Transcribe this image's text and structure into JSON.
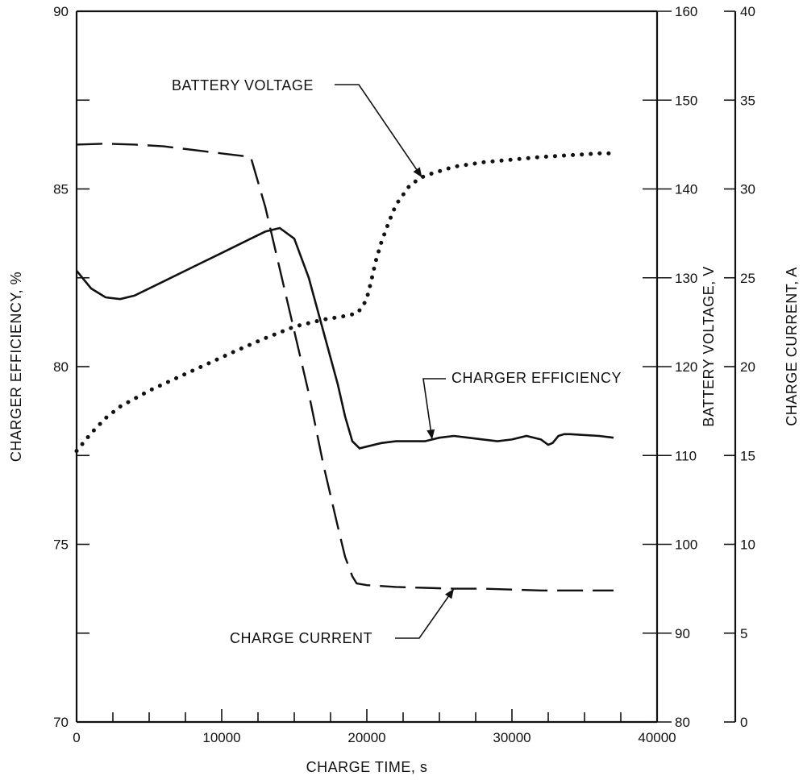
{
  "chart_data": {
    "type": "line",
    "title": "",
    "xlabel": "CHARGE TIME, s",
    "xlim": [
      0,
      40000
    ],
    "xticks": [
      "0",
      "10000",
      "20000",
      "30000",
      "40000"
    ],
    "axes": [
      {
        "id": "efficiency",
        "side": "left",
        "label": "CHARGER EFFICIENCY, %",
        "lim": [
          70,
          90
        ],
        "ticks": [
          "70",
          "75",
          "80",
          "85",
          "90"
        ]
      },
      {
        "id": "voltage",
        "side": "right",
        "label": "BATTERY VOLTAGE, V",
        "lim": [
          80,
          160
        ],
        "ticks": [
          "80",
          "90",
          "100",
          "110",
          "120",
          "130",
          "140",
          "150",
          "160"
        ]
      },
      {
        "id": "current",
        "side": "far-right",
        "label": "CHARGE CURRENT, A",
        "lim": [
          0,
          40
        ],
        "ticks": [
          "0",
          "5",
          "10",
          "15",
          "20",
          "25",
          "30",
          "35",
          "40"
        ]
      }
    ],
    "grid": false,
    "series": [
      {
        "name": "CHARGER EFFICIENCY",
        "axis": "efficiency",
        "style": "solid",
        "x": [
          0,
          1000,
          2000,
          3000,
          4000,
          6000,
          8000,
          10000,
          12000,
          13000,
          14000,
          15000,
          16000,
          17000,
          18000,
          18500,
          19000,
          19500,
          20000,
          21000,
          22000,
          24000,
          25000,
          26000,
          27000,
          28000,
          29000,
          30000,
          31000,
          32000,
          32500,
          32800,
          33200,
          33600,
          34000,
          36000,
          37000
        ],
        "y": [
          82.7,
          82.2,
          81.95,
          81.9,
          82.0,
          82.4,
          82.8,
          83.2,
          83.6,
          83.8,
          83.9,
          83.6,
          82.5,
          81.0,
          79.5,
          78.6,
          77.9,
          77.7,
          77.75,
          77.85,
          77.9,
          77.9,
          78.0,
          78.05,
          78.0,
          77.95,
          77.9,
          77.95,
          78.05,
          77.95,
          77.8,
          77.85,
          78.05,
          78.1,
          78.1,
          78.05,
          78.0
        ]
      },
      {
        "name": "BATTERY VOLTAGE",
        "axis": "voltage",
        "style": "dotted",
        "x": [
          0,
          1000,
          2000,
          3000,
          5000,
          7000,
          9000,
          11000,
          13000,
          15000,
          17000,
          18500,
          19300,
          19700,
          20000,
          20300,
          20600,
          21000,
          21500,
          22000,
          23000,
          24000,
          26000,
          28000,
          30000,
          32000,
          34000,
          36000,
          37000
        ],
        "y": [
          110.5,
          112.5,
          114.2,
          115.5,
          117.3,
          118.8,
          120.3,
          121.8,
          123.2,
          124.5,
          125.3,
          125.7,
          126.0,
          126.7,
          127.7,
          129.6,
          131.8,
          134.0,
          136.2,
          138.2,
          140.5,
          141.5,
          142.5,
          143.0,
          143.3,
          143.6,
          143.8,
          144.0,
          144.0
        ]
      },
      {
        "name": "CHARGE CURRENT",
        "axis": "current",
        "style": "dashed",
        "x": [
          0,
          2000,
          4000,
          6000,
          8000,
          10000,
          12000,
          13000,
          14000,
          15000,
          16000,
          17000,
          18000,
          18500,
          19000,
          19300,
          20000,
          22000,
          24000,
          26000,
          28000,
          30000,
          32000,
          34000,
          37000
        ],
        "y": [
          32.5,
          32.55,
          32.5,
          32.4,
          32.2,
          32.0,
          31.8,
          29.0,
          25.5,
          22.0,
          18.5,
          14.5,
          11.0,
          9.3,
          8.2,
          7.8,
          7.7,
          7.6,
          7.55,
          7.5,
          7.5,
          7.45,
          7.4,
          7.4,
          7.4
        ]
      }
    ],
    "annotations": [
      {
        "text": "BATTERY VOLTAGE",
        "points_to": "BATTERY VOLTAGE",
        "at_x": 23800
      },
      {
        "text": "CHARGER EFFICIENCY",
        "points_to": "CHARGER EFFICIENCY",
        "at_x": 24500
      },
      {
        "text": "CHARGE CURRENT",
        "points_to": "CHARGE CURRENT",
        "at_x": 26000
      }
    ]
  }
}
